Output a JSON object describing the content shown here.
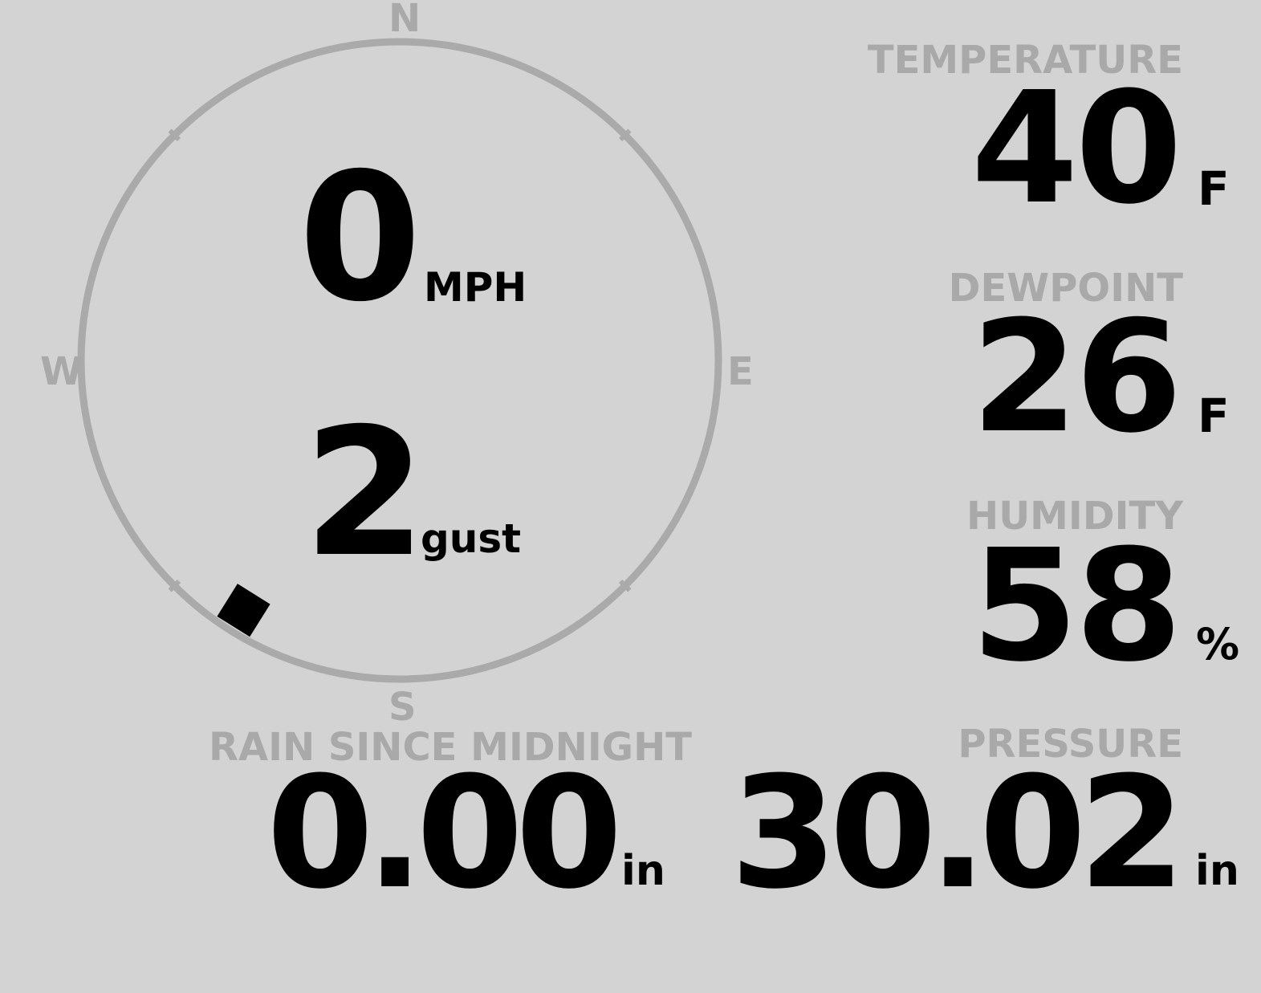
{
  "colors": {
    "background": "#d3d3d3",
    "label": "#a9a9a9",
    "value": "#000000",
    "compass_ring": "#aaaaaa"
  },
  "wind": {
    "speed": "0",
    "speed_unit": "MPH",
    "gust": "2",
    "gust_unit": "gust",
    "direction_degrees": 212,
    "compass": {
      "north": "N",
      "east": "E",
      "south": "S",
      "west": "W"
    }
  },
  "temperature": {
    "label": "TEMPERATURE",
    "value": "40",
    "unit": "F"
  },
  "dewpoint": {
    "label": "DEWPOINT",
    "value": "26",
    "unit": "F"
  },
  "humidity": {
    "label": "HUMIDITY",
    "value": "58",
    "unit": "%"
  },
  "rain": {
    "label": "RAIN SINCE MIDNIGHT",
    "value": "0.00",
    "unit": "in"
  },
  "pressure": {
    "label": "PRESSURE",
    "value": "30.02",
    "unit": "in"
  }
}
